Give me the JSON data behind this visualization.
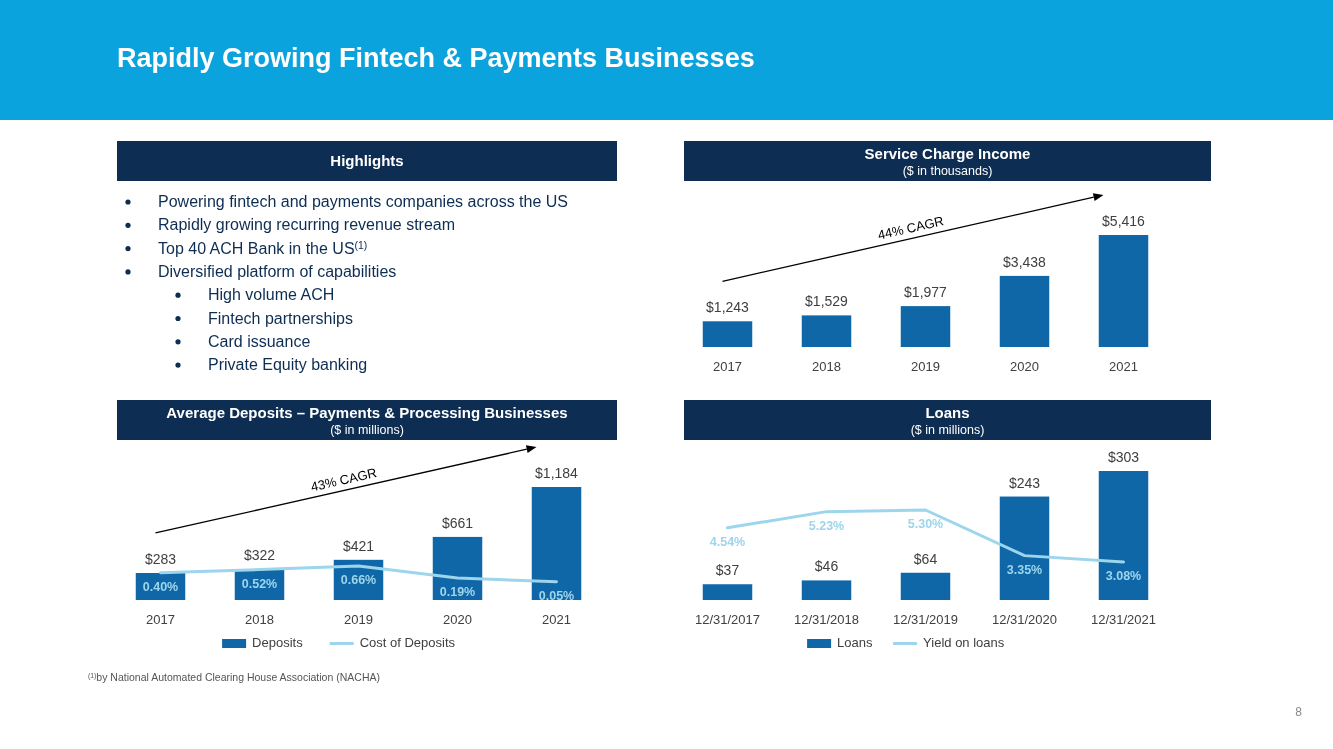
{
  "chart_data": [
    {
      "type": "other",
      "title": "Highlights",
      "annotations": [
        "Rapidly Growing Fintech & Payments Businesses",
        "Powering fintech and payments companies across the US",
        "Rapidly growing recurring revenue stream",
        "Top 40 ACH Bank in the US$^{(1)}$",
        "Diversified platform of capabilities",
        "High volume ACH",
        "Fintech partnerships",
        "Card issuance",
        "Private Equity banking",
        "$^{(1)}$by National Automated Clearing House Association (NACHA)",
        "8"
      ]
    },
    {
      "type": "bar",
      "title": "Service Charge Income",
      "subtitle": "($ in thousands)",
      "categories": [
        "2017",
        "2018",
        "2019",
        "2020",
        "2021"
      ],
      "tick_labels": "x",
      "annotations": [
        "44% CAGR"
      ],
      "series": [
        {
          "color": "#0f67a8",
          "values": [
            1243,
            1529,
            1977,
            3438,
            5416
          ],
          "value_labels": [
            "$1,243",
            "$1,529",
            "$1,977",
            "$3,438",
            "$5,416"
          ]
        }
      ]
    },
    {
      "type": "bar",
      "title": "Average Deposits – Payments & Processing Businesses",
      "subtitle": "($ in millions)",
      "categories": [
        "2017",
        "2018",
        "2019",
        "2020",
        "2021"
      ],
      "tick_labels": "x",
      "legend": "bottom",
      "annotations": [
        "43% CAGR"
      ],
      "series": [
        {
          "name": "Deposits",
          "color": "#0f67a8",
          "values": [
            283,
            322,
            421,
            661,
            1184
          ],
          "value_labels": [
            "$283",
            "$322",
            "$421",
            "$661",
            "$1,184"
          ]
        },
        {
          "name": "Cost of Deposits",
          "type": "line",
          "axis": "y2",
          "color": "#9dd5ec",
          "values": [
            0.4,
            0.52,
            0.66,
            0.19,
            0.05
          ],
          "value_labels": [
            "0.40%",
            "0.52%",
            "0.66%",
            "0.19%",
            "0.05%"
          ]
        }
      ]
    },
    {
      "type": "bar",
      "title": "Loans",
      "subtitle": "($ in millions)",
      "categories": [
        "12/31/2017",
        "12/31/2018",
        "12/31/2019",
        "12/31/2020",
        "12/31/2021"
      ],
      "tick_labels": "x",
      "legend": "bottom",
      "series": [
        {
          "name": "Loans",
          "color": "#0f67a8",
          "values": [
            37,
            46,
            64,
            243,
            303
          ],
          "value_labels": [
            "$37",
            "$46",
            "$64",
            "$243",
            "$303"
          ]
        },
        {
          "name": "Yield on loans",
          "type": "line",
          "axis": "y2",
          "color": "#9dd5ec",
          "values": [
            4.54,
            5.23,
            5.3,
            3.35,
            3.08
          ],
          "value_labels": [
            "4.54%",
            "5.23%",
            "5.30%",
            "3.35%",
            "3.08%"
          ]
        }
      ]
    }
  ]
}
